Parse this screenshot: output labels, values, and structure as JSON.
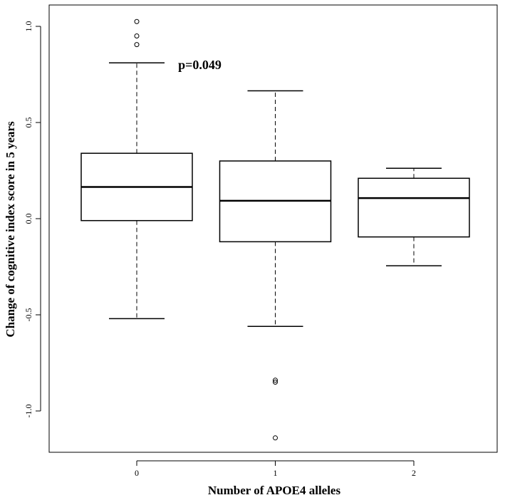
{
  "chart_data": {
    "type": "boxplot",
    "xlabel": "Number of APOE4 alleles",
    "ylabel": "Change of cognitive index score in 5 years",
    "categories": [
      "0",
      "1",
      "2"
    ],
    "ylim": [
      -1.2,
      1.1
    ],
    "yticks": [
      -1.0,
      -0.5,
      0.0,
      0.5,
      1.0
    ],
    "ytick_labels": [
      "-1.0",
      "-0.5",
      "0.0",
      "0.5",
      "1.0"
    ],
    "grid": false,
    "legend": "none",
    "annotation": {
      "text": "p=0.049",
      "x": 0.35,
      "y": 0.8
    },
    "boxes": [
      {
        "category": "0",
        "whisker_low": -0.52,
        "q1": -0.01,
        "median": 0.165,
        "q3": 0.34,
        "whisker_high": 0.81,
        "outliers": [
          0.905,
          0.95,
          1.025
        ]
      },
      {
        "category": "1",
        "whisker_low": -0.56,
        "q1": -0.12,
        "median": 0.093,
        "q3": 0.3,
        "whisker_high": 0.665,
        "outliers": [
          -0.84,
          -0.85,
          -1.14
        ]
      },
      {
        "category": "2",
        "whisker_low": -0.245,
        "q1": -0.095,
        "median": 0.107,
        "q3": 0.21,
        "whisker_high": 0.262,
        "outliers": []
      }
    ]
  }
}
